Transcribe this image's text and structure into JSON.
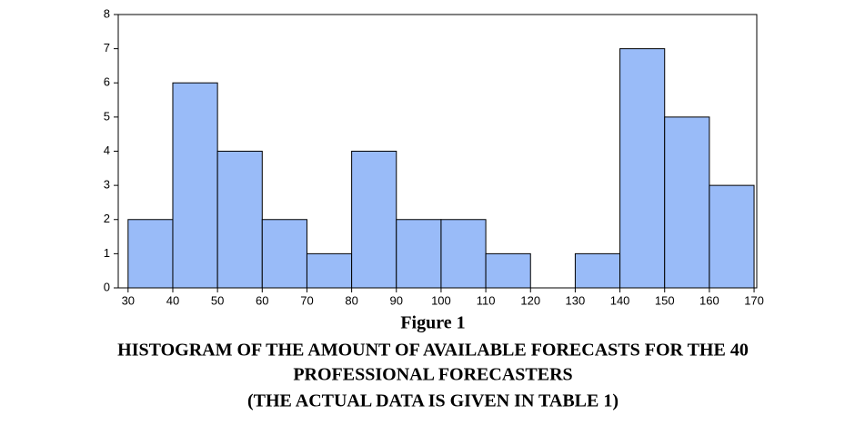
{
  "chart_data": {
    "type": "histogram",
    "title": "Figure 1",
    "caption": [
      "HISTOGRAM OF THE AMOUNT OF AVAILABLE FORECASTS FOR THE 40",
      "PROFESSIONAL FORECASTERS",
      "(THE ACTUAL DATA IS GIVEN IN TABLE 1)"
    ],
    "bins": [
      30,
      40,
      50,
      60,
      70,
      80,
      90,
      100,
      110,
      120,
      130,
      140,
      150,
      160,
      170
    ],
    "values": [
      2,
      6,
      4,
      2,
      1,
      4,
      2,
      2,
      1,
      0,
      1,
      7,
      5,
      3
    ],
    "color": "#99bbf8",
    "xlim": [
      27.8,
      170.6
    ],
    "xticks": [
      30,
      40,
      50,
      60,
      70,
      80,
      90,
      100,
      110,
      120,
      130,
      140,
      150,
      160,
      170
    ],
    "ylim": [
      0,
      8
    ],
    "yticks": [
      0,
      1,
      2,
      3,
      4,
      5,
      6,
      7,
      8
    ]
  }
}
